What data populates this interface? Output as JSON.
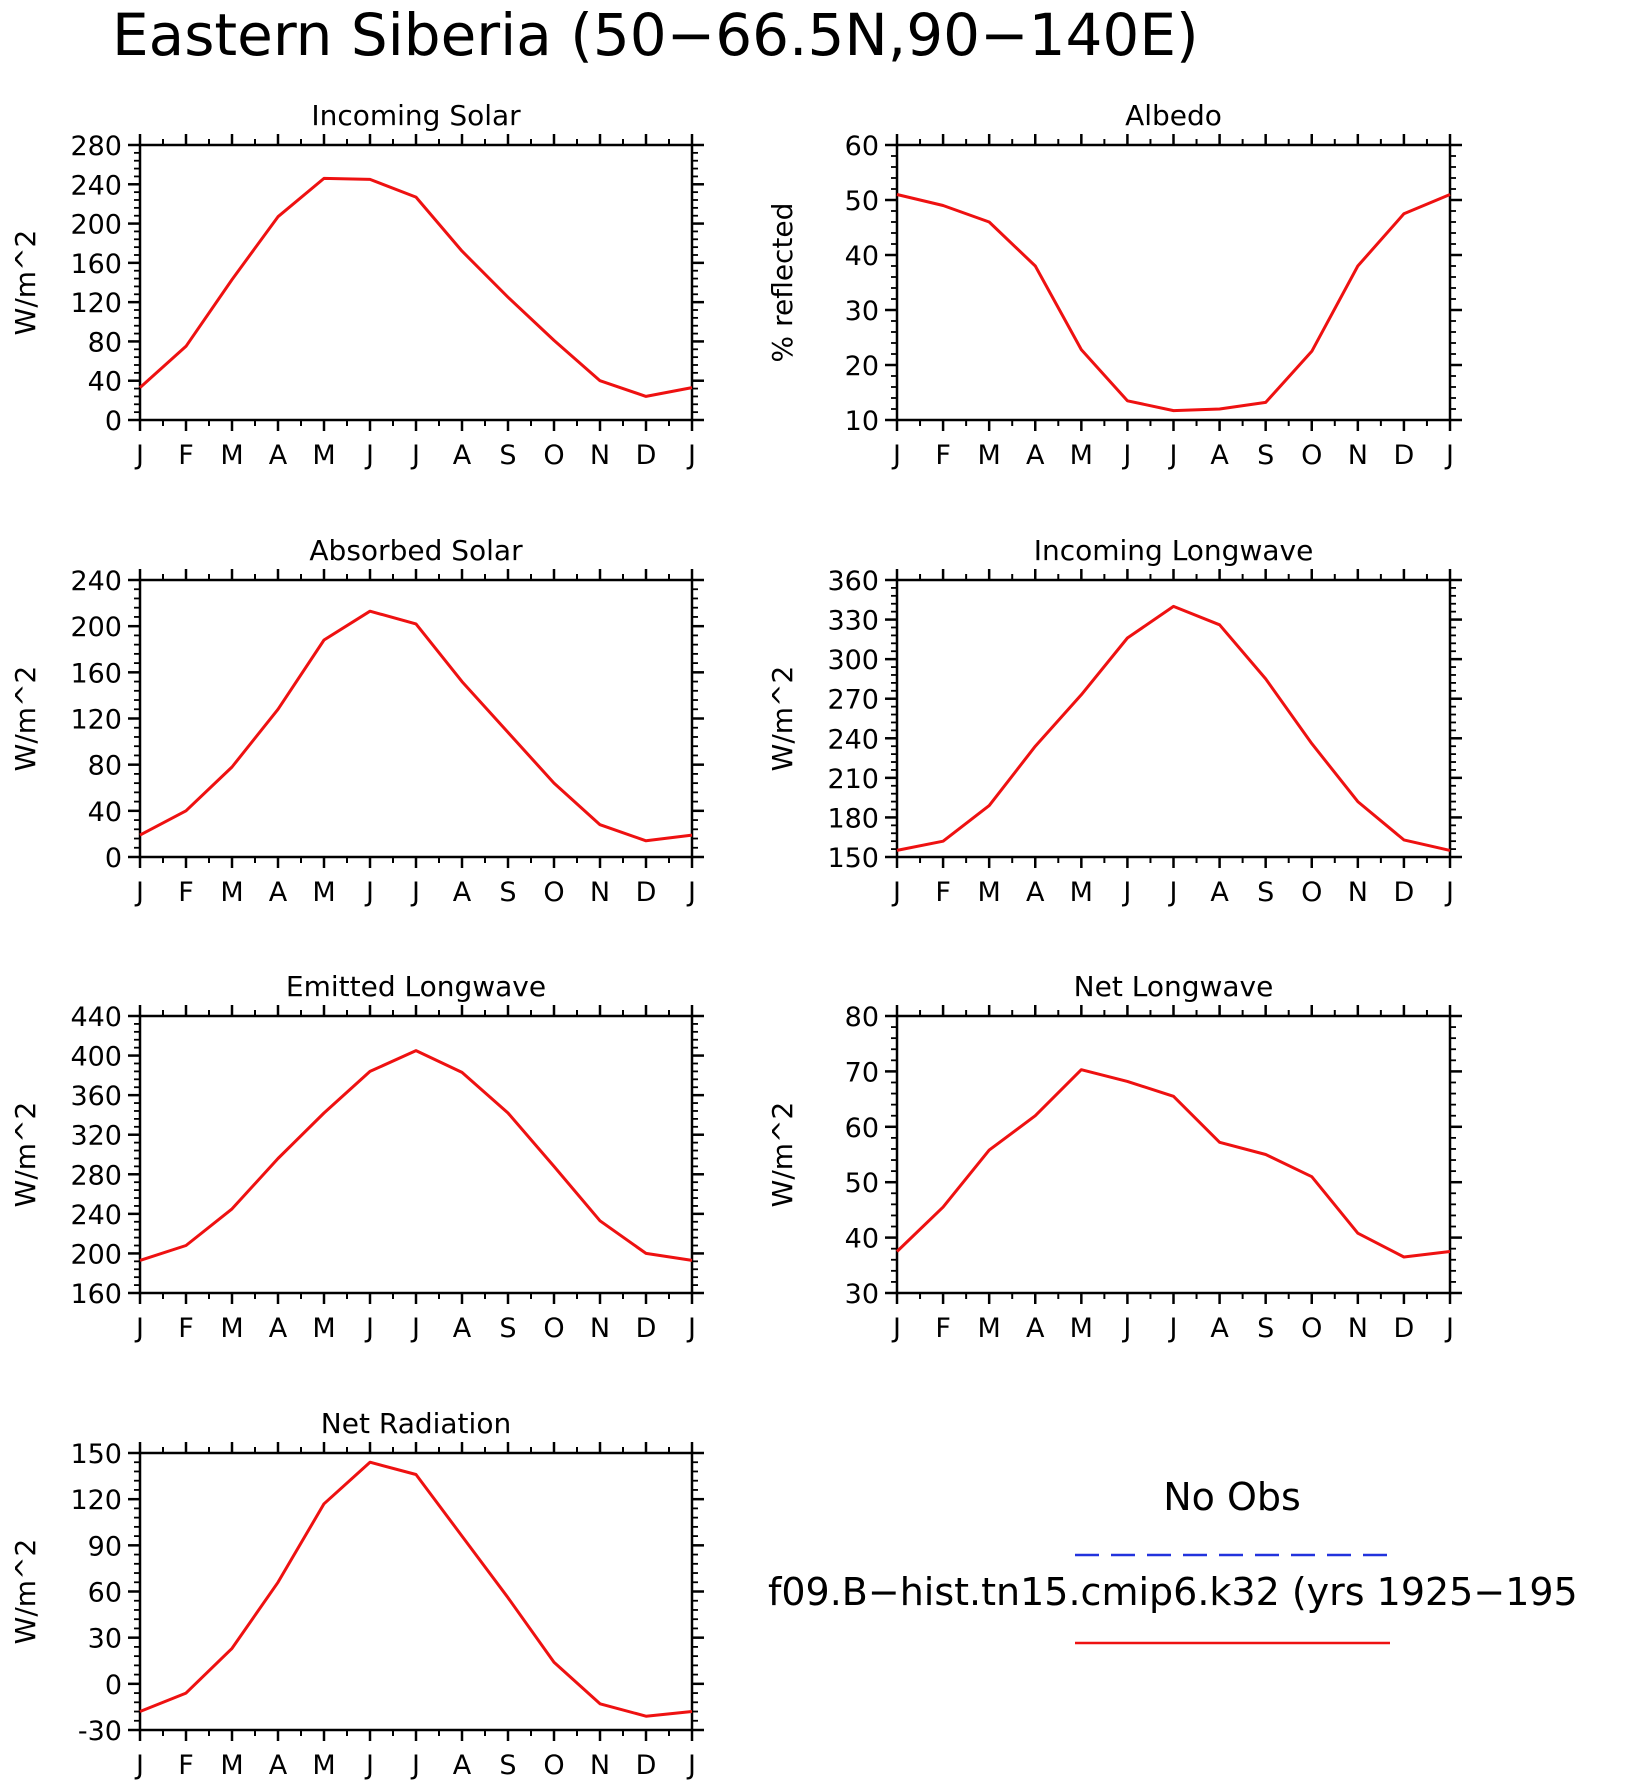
{
  "figure": {
    "title": "Eastern Siberia (50−66.5N,90−140E)",
    "months": [
      "J",
      "F",
      "M",
      "A",
      "M",
      "J",
      "J",
      "A",
      "S",
      "O",
      "N",
      "D",
      "J"
    ]
  },
  "legend": {
    "items": [
      {
        "label": "No Obs",
        "color": "#2233dd",
        "style": "dashed"
      },
      {
        "label": "f09.B−hist.tn15.cmip6.k32 (yrs 1925−195",
        "color": "#ee1111",
        "style": "solid"
      }
    ]
  },
  "chart_data": [
    {
      "type": "line",
      "title": "Incoming Solar",
      "ylabel": "W/m^2",
      "ylim": [
        0,
        280
      ],
      "yticks": [
        0,
        40,
        80,
        120,
        160,
        200,
        240,
        280
      ],
      "categories": [
        "J",
        "F",
        "M",
        "A",
        "M",
        "J",
        "J",
        "A",
        "S",
        "O",
        "N",
        "D",
        "J"
      ],
      "series": [
        {
          "color": "#ee1111",
          "values": [
            33,
            75,
            143,
            207,
            246,
            245,
            227,
            172,
            125,
            81,
            40,
            24,
            33
          ]
        }
      ]
    },
    {
      "type": "line",
      "title": "Albedo",
      "ylabel": "% reflected",
      "ylim": [
        10,
        60
      ],
      "yticks": [
        10,
        20,
        30,
        40,
        50,
        60
      ],
      "categories": [
        "J",
        "F",
        "M",
        "A",
        "M",
        "J",
        "J",
        "A",
        "S",
        "O",
        "N",
        "D",
        "J"
      ],
      "series": [
        {
          "color": "#ee1111",
          "values": [
            51,
            49,
            46,
            38,
            22.8,
            13.5,
            11.7,
            12,
            13.2,
            22.5,
            38,
            47.5,
            51
          ]
        }
      ]
    },
    {
      "type": "line",
      "title": "Absorbed Solar",
      "ylabel": "W/m^2",
      "ylim": [
        0,
        240
      ],
      "yticks": [
        0,
        40,
        80,
        120,
        160,
        200,
        240
      ],
      "categories": [
        "J",
        "F",
        "M",
        "A",
        "M",
        "J",
        "J",
        "A",
        "S",
        "O",
        "N",
        "D",
        "J"
      ],
      "series": [
        {
          "color": "#ee1111",
          "values": [
            19,
            40,
            78,
            128,
            188,
            213,
            202,
            152,
            108,
            64,
            28,
            14,
            19
          ]
        }
      ]
    },
    {
      "type": "line",
      "title": "Incoming Longwave",
      "ylabel": "W/m^2",
      "ylim": [
        150,
        360
      ],
      "yticks": [
        150,
        180,
        210,
        240,
        270,
        300,
        330,
        360
      ],
      "categories": [
        "J",
        "F",
        "M",
        "A",
        "M",
        "J",
        "J",
        "A",
        "S",
        "O",
        "N",
        "D",
        "J"
      ],
      "series": [
        {
          "color": "#ee1111",
          "values": [
            155,
            162,
            189,
            234,
            273,
            316,
            340,
            326,
            285,
            236,
            192,
            163,
            155
          ]
        }
      ]
    },
    {
      "type": "line",
      "title": "Emitted Longwave",
      "ylabel": "W/m^2",
      "ylim": [
        160,
        440
      ],
      "yticks": [
        160,
        200,
        240,
        280,
        320,
        360,
        400,
        440
      ],
      "categories": [
        "J",
        "F",
        "M",
        "A",
        "M",
        "J",
        "J",
        "A",
        "S",
        "O",
        "N",
        "D",
        "J"
      ],
      "series": [
        {
          "color": "#ee1111",
          "values": [
            193,
            208,
            245,
            296,
            342,
            384,
            405,
            383,
            342,
            288,
            233,
            200,
            193
          ]
        }
      ]
    },
    {
      "type": "line",
      "title": "Net Longwave",
      "ylabel": "W/m^2",
      "ylim": [
        30,
        80
      ],
      "yticks": [
        30,
        40,
        50,
        60,
        70,
        80
      ],
      "categories": [
        "J",
        "F",
        "M",
        "A",
        "M",
        "J",
        "J",
        "A",
        "S",
        "O",
        "N",
        "D",
        "J"
      ],
      "series": [
        {
          "color": "#ee1111",
          "values": [
            37.5,
            45.5,
            55.8,
            62,
            70.3,
            68.2,
            65.5,
            57.2,
            55,
            51,
            40.8,
            36.5,
            37.5
          ]
        }
      ]
    },
    {
      "type": "line",
      "title": "Net Radiation",
      "ylabel": "W/m^2",
      "ylim": [
        -30,
        150
      ],
      "yticks": [
        -30,
        0,
        30,
        60,
        90,
        120,
        150
      ],
      "categories": [
        "J",
        "F",
        "M",
        "A",
        "M",
        "J",
        "J",
        "A",
        "S",
        "O",
        "N",
        "D",
        "J"
      ],
      "series": [
        {
          "color": "#ee1111",
          "values": [
            -18,
            -6,
            23,
            66,
            117,
            144,
            136,
            96,
            56,
            14,
            -13,
            -21,
            -18
          ]
        }
      ]
    }
  ]
}
